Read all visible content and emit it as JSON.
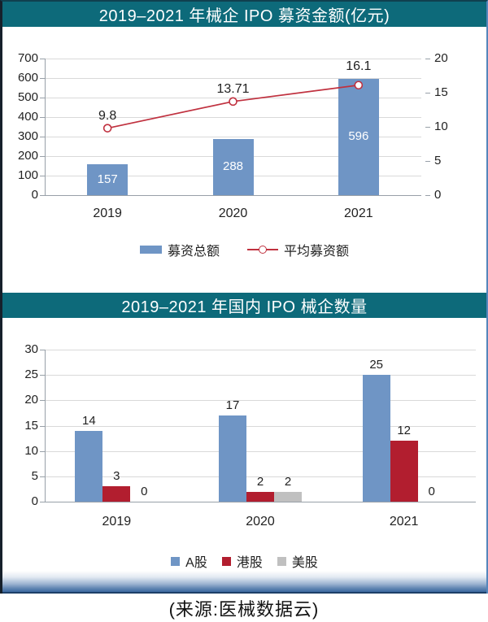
{
  "colors": {
    "header_bg": "#0d6a7a",
    "header_text": "#ffffff",
    "bar_blue": "#6f95c5",
    "line_red": "#c0313f",
    "bar_dark_red": "#b21e2f",
    "bar_gray": "#c0c0c0",
    "grid": "#d9d9d9"
  },
  "chart_data": [
    {
      "type": "bar",
      "subtype": "combo-bar-line",
      "title": "2019–2021 年械企 IPO 募资金额(亿元)",
      "categories": [
        "2019",
        "2020",
        "2021"
      ],
      "series": [
        {
          "key": "total-raised",
          "name": "募资总额",
          "kind": "bar",
          "axis": "left",
          "values": [
            157,
            288,
            596
          ],
          "color": "#6f95c5",
          "label_position": "inside-center",
          "label_color": "#ffffff"
        },
        {
          "key": "avg-raised",
          "name": "平均募资额",
          "kind": "line",
          "axis": "right",
          "values": [
            9.8,
            13.71,
            16.1
          ],
          "color": "#c0313f",
          "label_position": "above",
          "label_color": "#1f1f1f"
        }
      ],
      "left_axis": {
        "min": 0,
        "max": 700,
        "step": 100
      },
      "right_axis": {
        "min": 0,
        "max": 20,
        "step": 5
      },
      "grid": true,
      "legend_position": "bottom"
    },
    {
      "type": "bar",
      "subtype": "grouped-bar",
      "title": "2019–2021 年国内 IPO 械企数量",
      "categories": [
        "2019",
        "2020",
        "2021"
      ],
      "series": [
        {
          "key": "a-share",
          "name": "A股",
          "kind": "bar",
          "axis": "left",
          "values": [
            14,
            17,
            25
          ],
          "color": "#6f95c5",
          "label_position": "above",
          "label_color": "#1f1f1f"
        },
        {
          "key": "hk-share",
          "name": "港股",
          "kind": "bar",
          "axis": "left",
          "values": [
            3,
            2,
            12
          ],
          "color": "#b21e2f",
          "label_position": "above",
          "label_color": "#1f1f1f"
        },
        {
          "key": "us-share",
          "name": "美股",
          "kind": "bar",
          "axis": "left",
          "values": [
            0,
            2,
            0
          ],
          "color": "#c0c0c0",
          "label_position": "above",
          "label_color": "#1f1f1f"
        }
      ],
      "left_axis": {
        "min": 0,
        "max": 30,
        "step": 5
      },
      "grid": true,
      "legend_position": "bottom"
    }
  ],
  "footer": {
    "source_text": "(来源:医械数据云)"
  }
}
